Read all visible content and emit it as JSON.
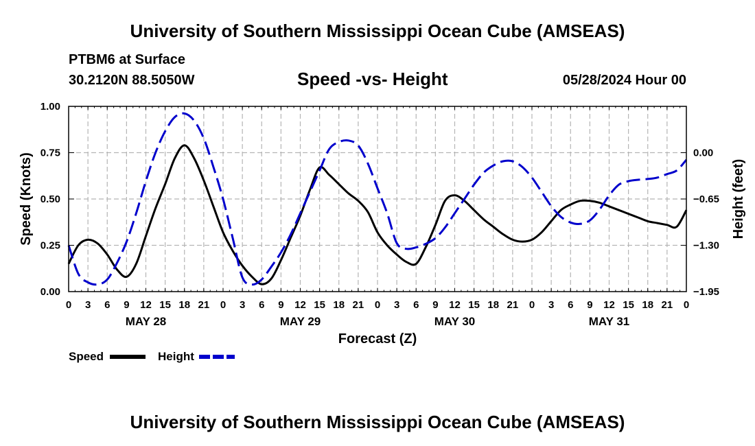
{
  "header": {
    "title": "University of Southern Mississippi Ocean Cube (AMSEAS)",
    "station": "PTBM6 at Surface",
    "coords": "30.2120N  88.5050W",
    "plot_title": "Speed -vs- Height",
    "datetime": "05/28/2024 Hour 00"
  },
  "footer": {
    "title": "University of Southern Mississippi Ocean Cube (AMSEAS)"
  },
  "chart_data": {
    "type": "line",
    "title": "Speed -vs- Height",
    "xlabel": "Forecast (Z)",
    "ylabel_left": "Speed (Knots)",
    "ylabel_right": "Height (feet)",
    "xlim": [
      0,
      96
    ],
    "ylim_left": [
      0,
      1.0
    ],
    "ylim_right": [
      -1.95,
      0.65
    ],
    "grid": true,
    "legend_position": "bottom-left",
    "x_tick_labels": [
      "0",
      "3",
      "6",
      "9",
      "12",
      "15",
      "18",
      "21",
      "0",
      "3",
      "6",
      "9",
      "12",
      "15",
      "18",
      "21",
      "0",
      "3",
      "6",
      "9",
      "12",
      "15",
      "18",
      "21",
      "0",
      "3",
      "6",
      "9",
      "12",
      "15",
      "18",
      "21",
      "0"
    ],
    "day_labels": [
      {
        "hour": 12,
        "label": "MAY 28"
      },
      {
        "hour": 36,
        "label": "MAY 29"
      },
      {
        "hour": 60,
        "label": "MAY 30"
      },
      {
        "hour": 84,
        "label": "MAY 31"
      }
    ],
    "y_left_ticks": [
      {
        "value": 0.0,
        "label": "0.00"
      },
      {
        "value": 0.25,
        "label": "0.25"
      },
      {
        "value": 0.5,
        "label": "0.50"
      },
      {
        "value": 0.75,
        "label": "0.75"
      },
      {
        "value": 1.0,
        "label": "1.00"
      }
    ],
    "y_right_ticks": [
      {
        "value": 0.0,
        "label": "0.00"
      },
      {
        "value": -0.65,
        "label": "−0.65"
      },
      {
        "value": -1.3,
        "label": "−1.30"
      },
      {
        "value": -1.95,
        "label": "−1.95"
      }
    ],
    "series": [
      {
        "name": "Speed",
        "axis": "left",
        "color": "#000000",
        "dash": "solid",
        "x": [
          0,
          1.5,
          3,
          4.5,
          6,
          7.5,
          9,
          10.5,
          12,
          13.5,
          15,
          16.5,
          18,
          19.5,
          21,
          22.5,
          24,
          25.5,
          27,
          28.5,
          30,
          31.5,
          33,
          34.5,
          36,
          37.5,
          39,
          40.5,
          42,
          43.5,
          45,
          46.5,
          48,
          49.5,
          51,
          52.5,
          54,
          55.5,
          57,
          58.5,
          60,
          61.5,
          63,
          64.5,
          66,
          67.5,
          69,
          70.5,
          72,
          73.5,
          75,
          76.5,
          78,
          79.5,
          81,
          82.5,
          84,
          85.5,
          87,
          88.5,
          90,
          91.5,
          93,
          94.5,
          96
        ],
        "y": [
          0.15,
          0.25,
          0.28,
          0.26,
          0.2,
          0.12,
          0.08,
          0.15,
          0.3,
          0.45,
          0.58,
          0.72,
          0.79,
          0.72,
          0.6,
          0.46,
          0.32,
          0.22,
          0.14,
          0.08,
          0.04,
          0.07,
          0.17,
          0.29,
          0.41,
          0.55,
          0.67,
          0.63,
          0.58,
          0.53,
          0.49,
          0.43,
          0.32,
          0.25,
          0.2,
          0.16,
          0.15,
          0.24,
          0.36,
          0.49,
          0.52,
          0.49,
          0.44,
          0.39,
          0.35,
          0.31,
          0.28,
          0.27,
          0.28,
          0.32,
          0.38,
          0.44,
          0.47,
          0.49,
          0.49,
          0.48,
          0.46,
          0.44,
          0.42,
          0.4,
          0.38,
          0.37,
          0.36,
          0.35,
          0.44
        ]
      },
      {
        "name": "Height",
        "axis": "right",
        "color": "#0000cc",
        "dash": "dashed",
        "x": [
          0,
          1.5,
          3,
          4.5,
          6,
          7.5,
          9,
          10.5,
          12,
          13.5,
          15,
          16.5,
          18,
          19.5,
          21,
          22.5,
          24,
          25.5,
          27,
          28.5,
          30,
          31.5,
          33,
          34.5,
          36,
          37.5,
          39,
          40.5,
          42,
          43.5,
          45,
          46.5,
          48,
          49.5,
          51,
          52.5,
          54,
          55.5,
          57,
          58.5,
          60,
          61.5,
          63,
          64.5,
          66,
          67.5,
          69,
          70.5,
          72,
          73.5,
          75,
          76.5,
          78,
          79.5,
          81,
          82.5,
          84,
          85.5,
          87,
          88.5,
          90,
          91.5,
          93,
          94.5,
          96
        ],
        "y": [
          -1.3,
          -1.7,
          -1.82,
          -1.85,
          -1.78,
          -1.55,
          -1.25,
          -0.85,
          -0.4,
          0.0,
          0.3,
          0.5,
          0.55,
          0.45,
          0.2,
          -0.2,
          -0.65,
          -1.2,
          -1.75,
          -1.85,
          -1.78,
          -1.6,
          -1.4,
          -1.15,
          -0.85,
          -0.55,
          -0.25,
          0.05,
          0.15,
          0.17,
          0.1,
          -0.15,
          -0.5,
          -0.85,
          -1.27,
          -1.35,
          -1.33,
          -1.28,
          -1.2,
          -1.05,
          -0.85,
          -0.65,
          -0.45,
          -0.28,
          -0.18,
          -0.12,
          -0.12,
          -0.2,
          -0.35,
          -0.55,
          -0.75,
          -0.9,
          -0.98,
          -1.0,
          -0.95,
          -0.8,
          -0.6,
          -0.45,
          -0.4,
          -0.38,
          -0.37,
          -0.35,
          -0.3,
          -0.25,
          -0.1
        ]
      }
    ]
  }
}
